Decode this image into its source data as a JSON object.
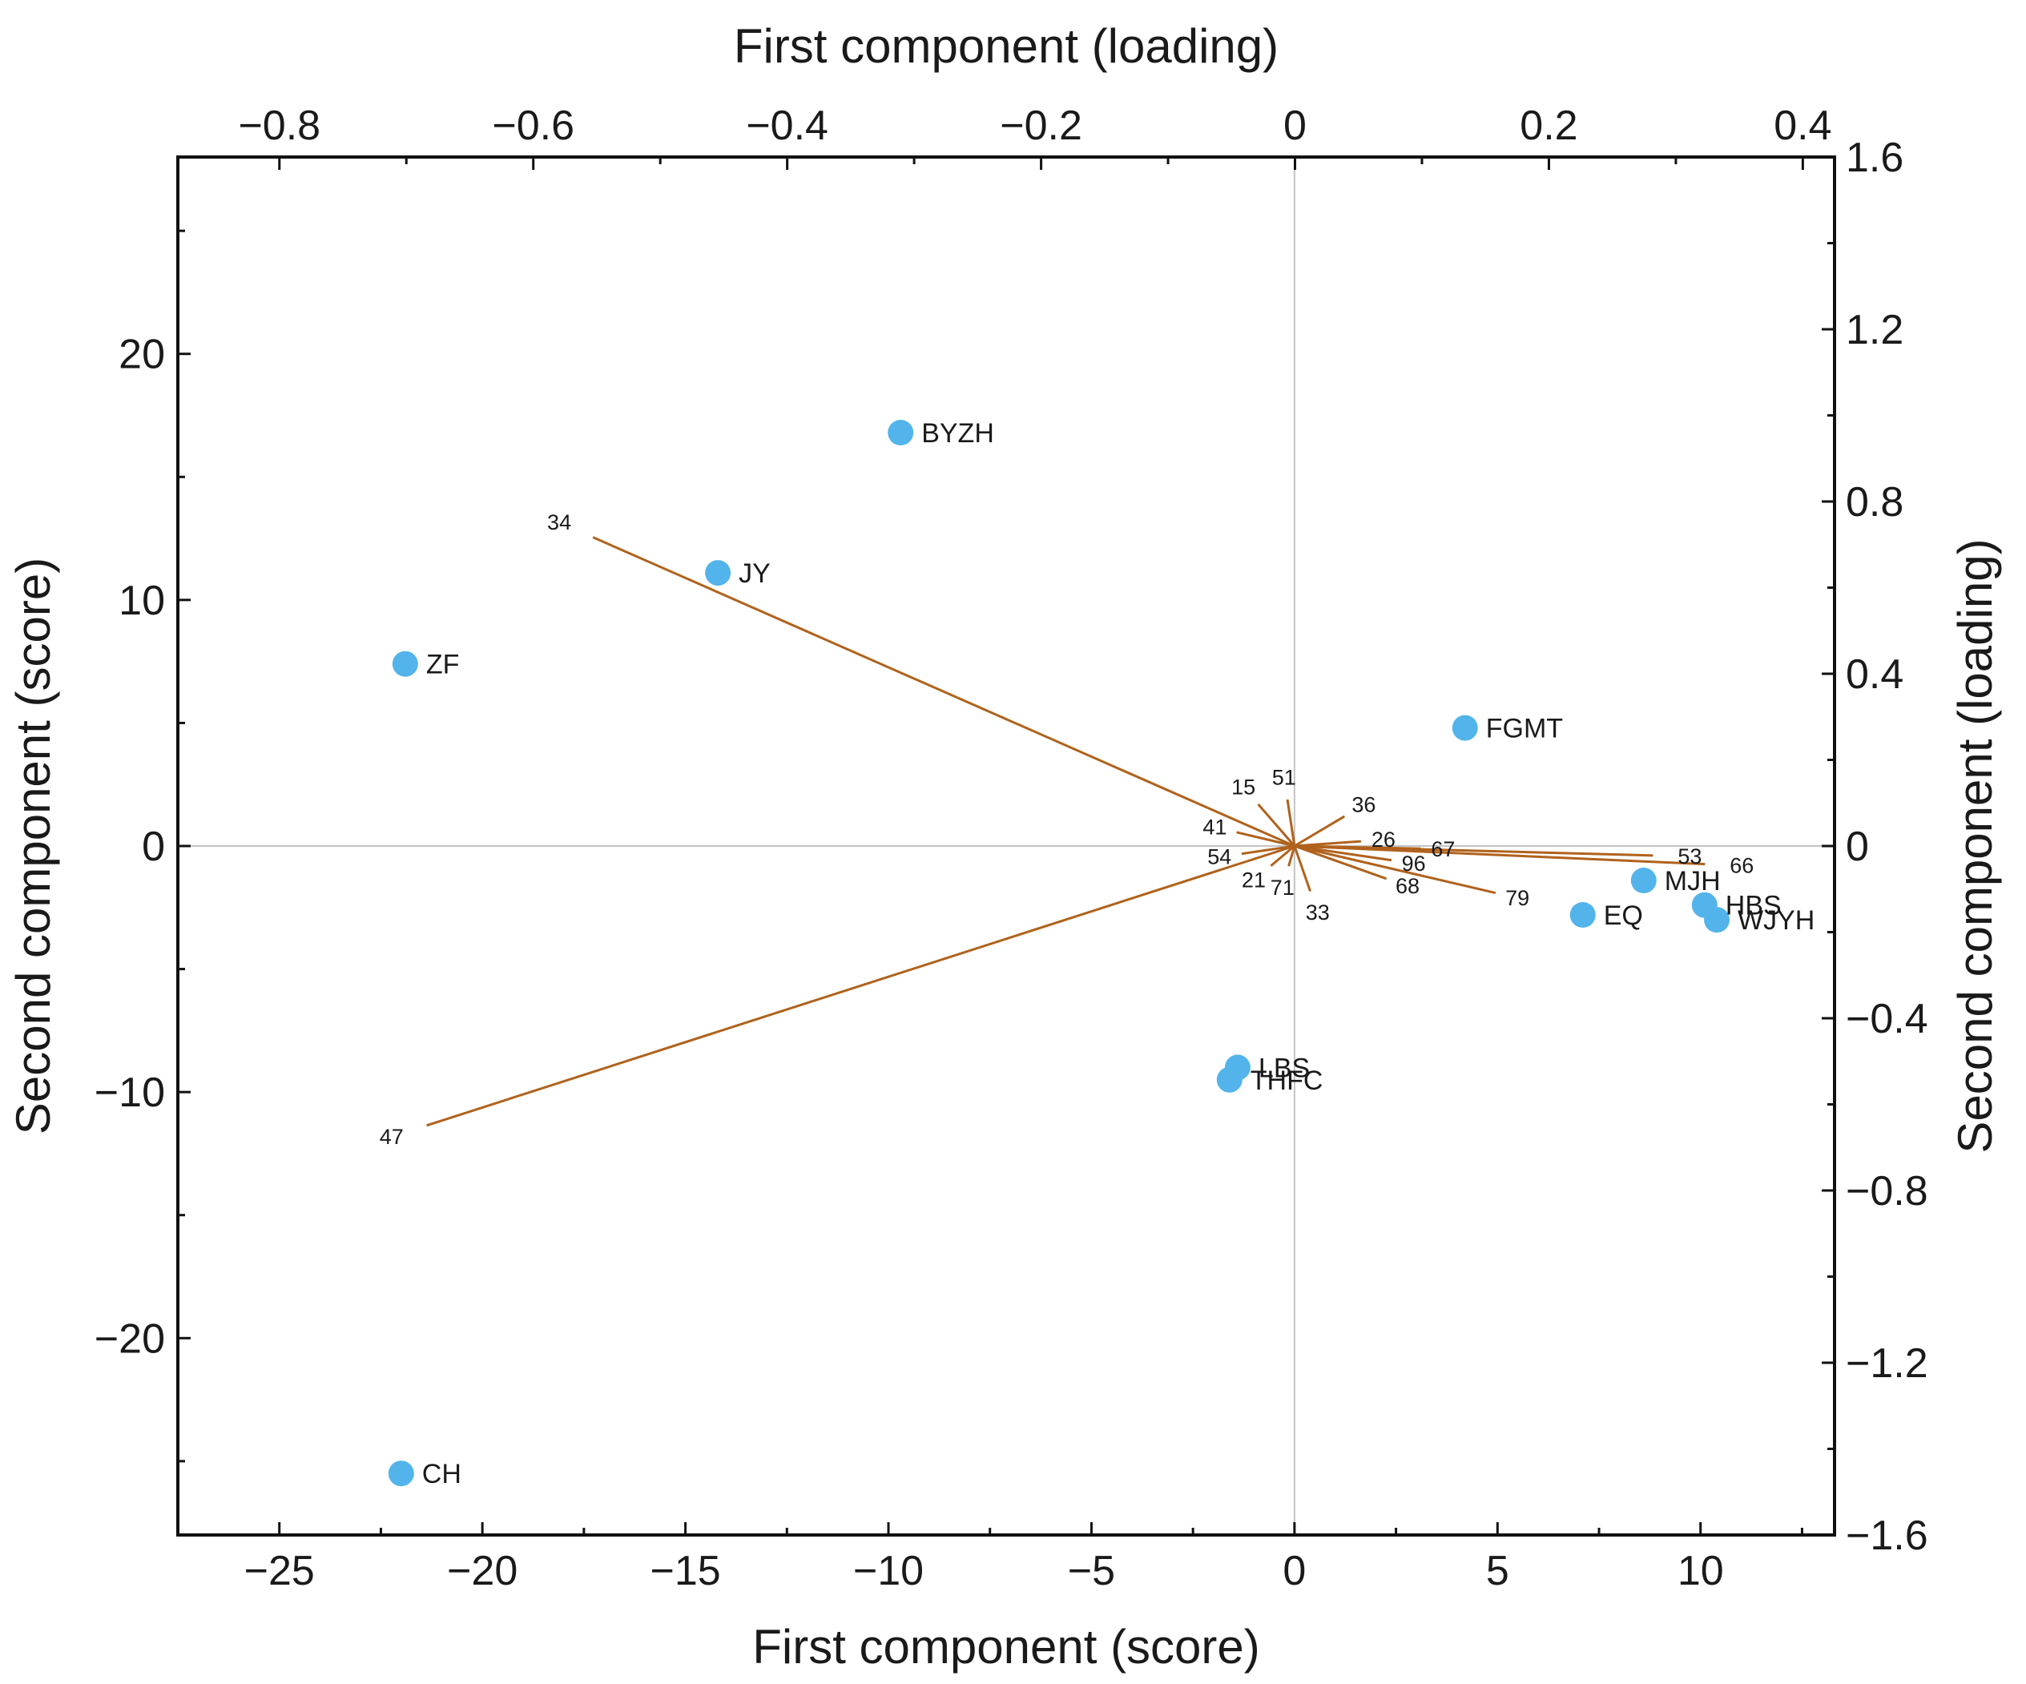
{
  "chart_data": {
    "type": "scatter",
    "subtype": "pca-biplot",
    "axes": {
      "bottom": {
        "label": "First component (score)",
        "range": [
          -27.5,
          13.3
        ],
        "ticks": [
          -25,
          -20,
          -15,
          -10,
          -5,
          0,
          5,
          10
        ],
        "tick_labels": [
          "−25",
          "−20",
          "−15",
          "−10",
          "−5",
          "0",
          "5",
          "10"
        ]
      },
      "left": {
        "label": "Second component (score)",
        "range": [
          -28,
          28
        ],
        "ticks": [
          -20,
          -10,
          0,
          10,
          20
        ],
        "tick_labels": [
          "−20",
          "−10",
          "0",
          "10",
          "20"
        ]
      },
      "top": {
        "label": "First component (loading)",
        "range": [
          -0.88,
          0.425
        ],
        "ticks": [
          -0.8,
          -0.6,
          -0.4,
          -0.2,
          0,
          0.2,
          0.4
        ],
        "tick_labels": [
          "−0.8",
          "−0.6",
          "−0.4",
          "−0.2",
          "0",
          "0.2",
          "0.4"
        ]
      },
      "right": {
        "label": "Second component (loading)",
        "range": [
          -1.6,
          1.6
        ],
        "ticks": [
          -1.6,
          -1.2,
          -0.8,
          -0.4,
          0,
          0.4,
          0.8,
          1.2,
          1.6
        ],
        "tick_labels": [
          "−1.6",
          "−1.2",
          "−0.8",
          "−0.4",
          "0",
          "0.4",
          "0.8",
          "1.2",
          "1.6"
        ]
      }
    },
    "scores": [
      {
        "label": "BYZH",
        "x": -9.7,
        "y": 16.8
      },
      {
        "label": "JY",
        "x": -14.2,
        "y": 11.1
      },
      {
        "label": "ZF",
        "x": -21.9,
        "y": 7.4
      },
      {
        "label": "FGMT",
        "x": 4.2,
        "y": 4.8
      },
      {
        "label": "MJH",
        "x": 8.6,
        "y": -1.4
      },
      {
        "label": "HBS",
        "x": 10.1,
        "y": -2.4
      },
      {
        "label": "WJYH",
        "x": 10.4,
        "y": -3.0
      },
      {
        "label": "EQ",
        "x": 7.1,
        "y": -2.8
      },
      {
        "label": "LBS",
        "x": -1.4,
        "y": -9.0
      },
      {
        "label": "THFC",
        "x": -1.6,
        "y": -9.5
      },
      {
        "label": "CH",
        "x": -22.0,
        "y": -25.5
      }
    ],
    "loadings": [
      {
        "label": "34",
        "x": -0.553,
        "y": 0.717
      },
      {
        "label": "47",
        "x": -0.684,
        "y": -0.649
      },
      {
        "label": "15",
        "x": -0.029,
        "y": 0.097
      },
      {
        "label": "51",
        "x": -0.006,
        "y": 0.108
      },
      {
        "label": "36",
        "x": 0.039,
        "y": 0.069
      },
      {
        "label": "41",
        "x": -0.046,
        "y": 0.032
      },
      {
        "label": "26",
        "x": 0.052,
        "y": 0.011
      },
      {
        "label": "67",
        "x": 0.099,
        "y": -0.006
      },
      {
        "label": "53",
        "x": 0.282,
        "y": -0.022
      },
      {
        "label": "66",
        "x": 0.323,
        "y": -0.042
      },
      {
        "label": "96",
        "x": 0.076,
        "y": -0.033
      },
      {
        "label": "68",
        "x": 0.072,
        "y": -0.076
      },
      {
        "label": "79",
        "x": 0.158,
        "y": -0.109
      },
      {
        "label": "54",
        "x": -0.042,
        "y": -0.018
      },
      {
        "label": "21",
        "x": -0.019,
        "y": -0.046
      },
      {
        "label": "71",
        "x": -0.005,
        "y": -0.047
      },
      {
        "label": "33",
        "x": 0.012,
        "y": -0.105
      }
    ],
    "reference_lines": [
      "x = 0",
      "y = 0"
    ],
    "grid": false,
    "legend": false
  },
  "colors": {
    "point": "#52b4ea",
    "vector": "#b0621c",
    "axis": "#111111",
    "reference": "#c4c4c4"
  }
}
